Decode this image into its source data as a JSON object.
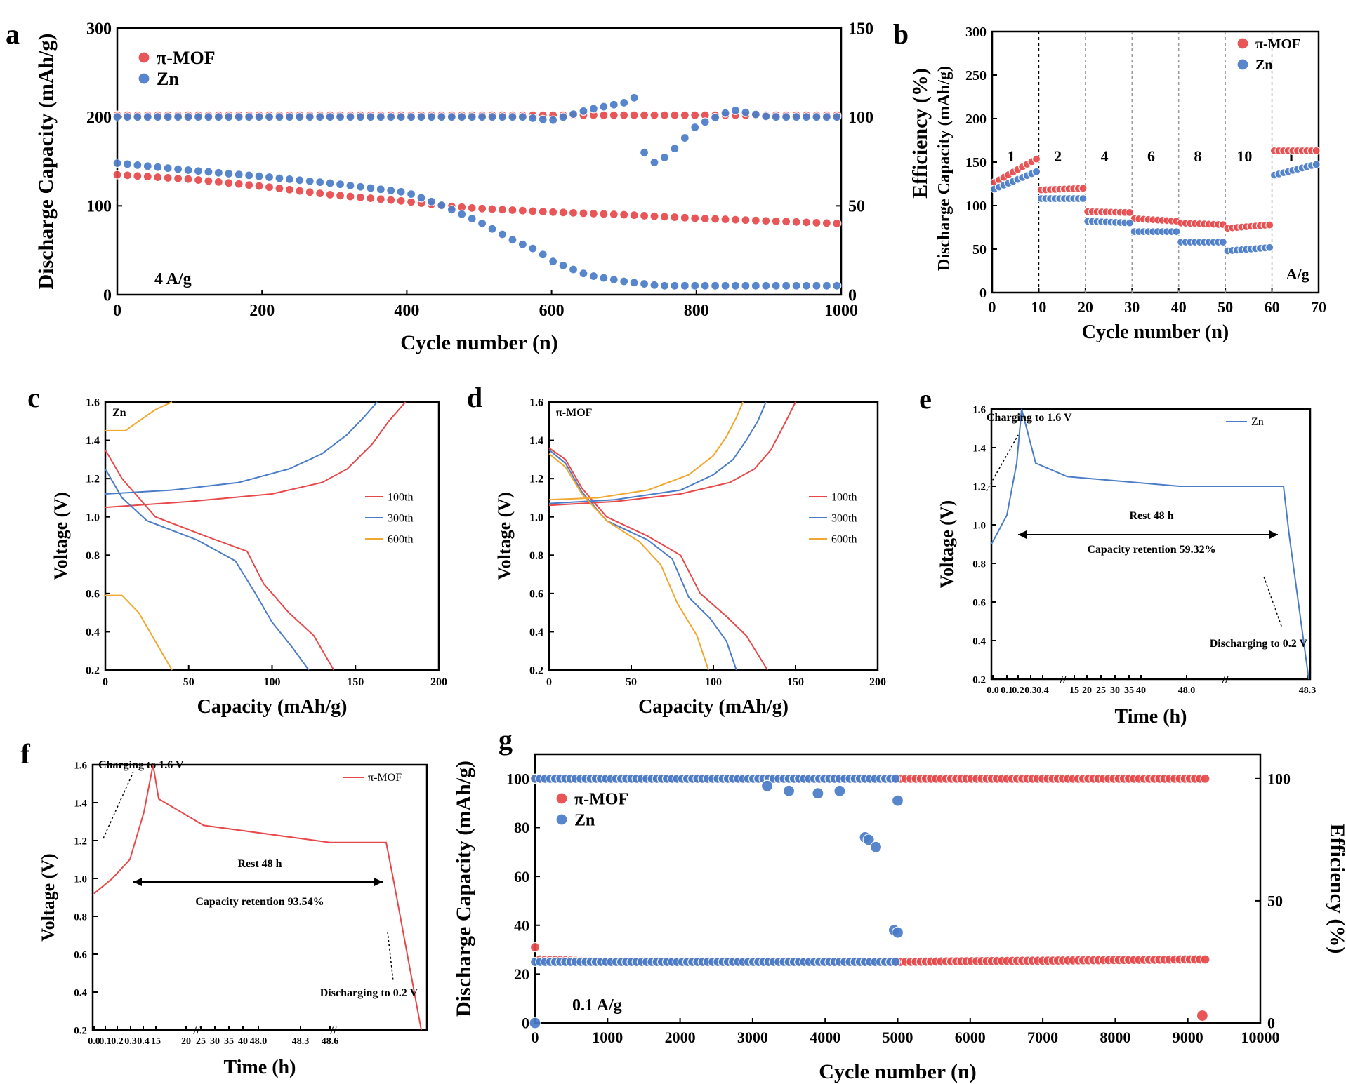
{
  "colors": {
    "mof": "#e8484a",
    "zn": "#4a7cc8",
    "orange": "#f0a830",
    "axis": "#000000"
  },
  "panels": {
    "a": {
      "letter": "a",
      "xlabel": "Cycle number (n)",
      "ylabel": "Discharge Capacity (mAh/g)",
      "xticks": [
        "0",
        "200",
        "400",
        "600",
        "800",
        "1000"
      ],
      "yticks": [
        "0",
        "100",
        "200",
        "300"
      ],
      "y2ticks": [
        "0",
        "50",
        "100",
        "150"
      ],
      "annotation": "4 A/g",
      "legend": [
        "π-MOF",
        "Zn"
      ]
    },
    "b": {
      "letter": "b",
      "xlabel": "Cycle number (n)",
      "ylabel_outer": "Efficiency (%)",
      "ylabel_inner": "Discharge Capacity (mAh/g)",
      "xticks": [
        "0",
        "10",
        "20",
        "30",
        "40",
        "50",
        "60",
        "70"
      ],
      "yticks": [
        "0",
        "50",
        "100",
        "150",
        "200",
        "250",
        "300"
      ],
      "segment_labels": [
        "1",
        "2",
        "4",
        "6",
        "8",
        "10",
        "1"
      ],
      "unit": "A/g",
      "legend": [
        "π-MOF",
        "Zn"
      ]
    },
    "c": {
      "letter": "c",
      "xlabel": "Capacity (mAh/g)",
      "ylabel": "Voltage (V)",
      "tag": "Zn",
      "xticks": [
        "0",
        "50",
        "100",
        "150",
        "200"
      ],
      "yticks": [
        "0.2",
        "0.4",
        "0.6",
        "0.8",
        "1.0",
        "1.2",
        "1.4",
        "1.6"
      ],
      "legend": [
        "100th",
        "300th",
        "600th"
      ]
    },
    "d": {
      "letter": "d",
      "xlabel": "Capacity (mAh/g)",
      "ylabel": "Voltage (V)",
      "tag": "π-MOF",
      "xticks": [
        "0",
        "50",
        "100",
        "150",
        "200"
      ],
      "yticks": [
        "0.2",
        "0.4",
        "0.6",
        "0.8",
        "1.0",
        "1.2",
        "1.4",
        "1.6"
      ],
      "legend": [
        "100th",
        "300th",
        "600th"
      ]
    },
    "e": {
      "letter": "e",
      "xlabel": "Time (h)",
      "ylabel": "Voltage (V)",
      "legend": "Zn",
      "charge_note": "Charging to 1.6 V",
      "rest_note": "Rest 48 h",
      "retention_note": "Capacity retention 59.32%",
      "discharge_note": "Discharging to 0.2 V",
      "xticks": [
        "0.0",
        "0.1",
        "0.2",
        "0.3",
        "0.4",
        "15",
        "20",
        "25",
        "30",
        "35",
        "40",
        "48.0",
        "48.3"
      ],
      "yticks": [
        "0.2",
        "0.4",
        "0.6",
        "0.8",
        "1.0",
        "1.2",
        "1.4",
        "1.6"
      ]
    },
    "f": {
      "letter": "f",
      "xlabel": "Time (h)",
      "ylabel": "Voltage (V)",
      "legend": "π-MOF",
      "charge_note": "Charging to 1.6 V",
      "rest_note": "Rest 48 h",
      "retention_note": "Capacity retention 93.54%",
      "discharge_note": "Discharging to 0.2 V",
      "xticks": [
        "0.0",
        "0.1",
        "0.2",
        "0.3",
        "0.4",
        "15",
        "20",
        "25",
        "30",
        "35",
        "40",
        "48.0",
        "48.3",
        "48.6"
      ],
      "yticks": [
        "0.2",
        "0.4",
        "0.6",
        "0.8",
        "1.0",
        "1.2",
        "1.4",
        "1.6"
      ]
    },
    "g": {
      "letter": "g",
      "xlabel": "Cycle number (n)",
      "ylabel": "Discharge Capacity (mAh/g)",
      "y2label": "Efficiency (%)",
      "xticks": [
        "0",
        "1000",
        "2000",
        "3000",
        "4000",
        "5000",
        "6000",
        "7000",
        "8000",
        "9000",
        "10000"
      ],
      "yticks": [
        "0",
        "20",
        "40",
        "60",
        "80",
        "100"
      ],
      "y2ticks": [
        "0",
        "50",
        "100"
      ],
      "annotation": "0.1 A/g",
      "legend": [
        "π-MOF",
        "Zn"
      ]
    }
  },
  "chart_data": [
    {
      "panel": "a",
      "type": "scatter",
      "xlim": [
        0,
        1000
      ],
      "ylim": [
        0,
        300
      ],
      "y2lim": [
        0,
        150
      ],
      "series": [
        {
          "name": "π-MOF",
          "role": "capacity",
          "x": [
            0,
            100,
            200,
            300,
            400,
            450,
            500,
            600,
            700,
            800,
            900,
            1000
          ],
          "y": [
            135,
            130,
            122,
            112,
            105,
            100,
            97,
            93,
            90,
            86,
            83,
            80
          ]
        },
        {
          "name": "Zn",
          "role": "capacity",
          "x": [
            0,
            100,
            200,
            300,
            400,
            450,
            500,
            550,
            580,
            600,
            650,
            700,
            750,
            800,
            1000
          ],
          "y": [
            148,
            140,
            133,
            125,
            115,
            100,
            82,
            60,
            50,
            38,
            22,
            15,
            10,
            10,
            10
          ]
        },
        {
          "name": "π-MOF",
          "role": "efficiency",
          "x": [
            0,
            1000
          ],
          "y": [
            101,
            101
          ]
        },
        {
          "name": "Zn",
          "role": "efficiency",
          "x": [
            0,
            560,
            600,
            650,
            700,
            720,
            730,
            760,
            800,
            850,
            900,
            1000
          ],
          "y": [
            100,
            100,
            98,
            104,
            108,
            112,
            72,
            78,
            95,
            104,
            100,
            100
          ]
        }
      ]
    },
    {
      "panel": "b",
      "type": "scatter",
      "xlim": [
        0,
        70
      ],
      "ylim": [
        0,
        300
      ],
      "series": [
        {
          "name": "π-MOF",
          "role": "capacity",
          "x": [
            0,
            10,
            10.5,
            20,
            20.5,
            30,
            30.5,
            40,
            40.5,
            50,
            50.5,
            60,
            60.5,
            70
          ],
          "y": [
            125,
            155,
            118,
            120,
            93,
            92,
            85,
            82,
            80,
            78,
            74,
            78,
            163,
            163
          ]
        },
        {
          "name": "Zn",
          "role": "capacity",
          "x": [
            0,
            10,
            10.5,
            20,
            20.5,
            30,
            30.5,
            40,
            40.5,
            50,
            50.5,
            60,
            60.5,
            70
          ],
          "y": [
            118,
            140,
            108,
            108,
            82,
            80,
            70,
            70,
            58,
            58,
            48,
            52,
            135,
            148
          ]
        }
      ]
    },
    {
      "panel": "c",
      "type": "line",
      "xlim": [
        0,
        200
      ],
      "ylim": [
        0.2,
        1.6
      ],
      "series": [
        {
          "name": "100th",
          "role": "discharge",
          "x": [
            0,
            10,
            30,
            60,
            85,
            95,
            110,
            125,
            137
          ],
          "y": [
            1.35,
            1.2,
            1.0,
            0.9,
            0.82,
            0.65,
            0.5,
            0.38,
            0.2
          ]
        },
        {
          "name": "100th",
          "role": "charge",
          "x": [
            0,
            50,
            100,
            130,
            145,
            160,
            170,
            180
          ],
          "y": [
            1.05,
            1.08,
            1.12,
            1.18,
            1.25,
            1.38,
            1.5,
            1.6
          ]
        },
        {
          "name": "300th",
          "role": "discharge",
          "x": [
            0,
            10,
            25,
            55,
            78,
            90,
            100,
            112,
            122
          ],
          "y": [
            1.25,
            1.1,
            0.98,
            0.88,
            0.77,
            0.6,
            0.45,
            0.32,
            0.2
          ]
        },
        {
          "name": "300th",
          "role": "charge",
          "x": [
            0,
            40,
            80,
            110,
            130,
            145,
            155,
            163
          ],
          "y": [
            1.12,
            1.14,
            1.18,
            1.25,
            1.33,
            1.43,
            1.52,
            1.6
          ]
        },
        {
          "name": "600th",
          "role": "discharge",
          "x": [
            0,
            10,
            20,
            30,
            40
          ],
          "y": [
            0.59,
            0.59,
            0.5,
            0.35,
            0.2
          ]
        },
        {
          "name": "600th",
          "role": "charge",
          "x": [
            0,
            12,
            20,
            30,
            40
          ],
          "y": [
            1.45,
            1.45,
            1.5,
            1.56,
            1.6
          ]
        }
      ]
    },
    {
      "panel": "d",
      "type": "line",
      "xlim": [
        0,
        200
      ],
      "ylim": [
        0.2,
        1.6
      ],
      "series": [
        {
          "name": "100th",
          "role": "discharge",
          "x": [
            0,
            10,
            20,
            35,
            60,
            80,
            92,
            108,
            120,
            133
          ],
          "y": [
            1.36,
            1.3,
            1.15,
            1.0,
            0.9,
            0.8,
            0.6,
            0.48,
            0.38,
            0.2
          ]
        },
        {
          "name": "100th",
          "role": "charge",
          "x": [
            0,
            40,
            80,
            110,
            125,
            135,
            143,
            150
          ],
          "y": [
            1.06,
            1.08,
            1.12,
            1.18,
            1.25,
            1.35,
            1.48,
            1.6
          ]
        },
        {
          "name": "300th",
          "role": "discharge",
          "x": [
            0,
            10,
            20,
            35,
            60,
            75,
            85,
            98,
            108,
            114
          ],
          "y": [
            1.35,
            1.28,
            1.13,
            0.98,
            0.88,
            0.78,
            0.58,
            0.47,
            0.35,
            0.2
          ]
        },
        {
          "name": "300th",
          "role": "charge",
          "x": [
            0,
            40,
            80,
            100,
            112,
            120,
            127,
            132
          ],
          "y": [
            1.07,
            1.09,
            1.14,
            1.22,
            1.3,
            1.4,
            1.5,
            1.6
          ]
        },
        {
          "name": "600th",
          "role": "discharge",
          "x": [
            0,
            10,
            20,
            35,
            55,
            68,
            78,
            90,
            97
          ],
          "y": [
            1.33,
            1.26,
            1.12,
            0.98,
            0.87,
            0.75,
            0.55,
            0.38,
            0.2
          ]
        },
        {
          "name": "600th",
          "role": "charge",
          "x": [
            0,
            30,
            60,
            85,
            100,
            108,
            114,
            118
          ],
          "y": [
            1.09,
            1.1,
            1.14,
            1.22,
            1.32,
            1.42,
            1.52,
            1.6
          ]
        }
      ]
    },
    {
      "panel": "e",
      "type": "line",
      "ylim": [
        0.2,
        1.6
      ],
      "series": [
        {
          "name": "Zn",
          "x": [
            "0.0",
            "0.1",
            "0.2",
            "0.21",
            "0.3",
            "15",
            "40",
            "48.0",
            "48.1",
            "48.3"
          ],
          "y": [
            0.9,
            1.05,
            1.32,
            1.6,
            1.32,
            1.25,
            1.2,
            1.2,
            0.95,
            0.2
          ]
        }
      ]
    },
    {
      "panel": "f",
      "type": "line",
      "ylim": [
        0.2,
        1.6
      ],
      "series": [
        {
          "name": "π-MOF",
          "x": [
            "0.0",
            "0.1",
            "0.2",
            "0.3",
            "0.33",
            "0.4",
            "15",
            "40",
            "48.0",
            "48.3",
            "48.6"
          ],
          "y": [
            0.92,
            1.0,
            1.1,
            1.35,
            1.6,
            1.42,
            1.28,
            1.19,
            1.19,
            1.0,
            0.2
          ]
        }
      ]
    },
    {
      "panel": "g",
      "type": "scatter",
      "xlim": [
        0,
        10000
      ],
      "ylim": [
        0,
        110
      ],
      "y2lim": [
        0,
        110
      ],
      "series": [
        {
          "name": "π-MOF",
          "role": "capacity",
          "x": [
            0,
            50,
            1000,
            5000,
            9000,
            9250
          ],
          "y": [
            31,
            26,
            25,
            25,
            26,
            26
          ]
        },
        {
          "name": "Zn",
          "role": "capacity",
          "x": [
            0,
            1000,
            5000
          ],
          "y": [
            25,
            25,
            25
          ]
        },
        {
          "name": "π-MOF",
          "role": "efficiency",
          "x": [
            0,
            9250
          ],
          "y": [
            100,
            100
          ]
        },
        {
          "name": "Zn",
          "role": "efficiency",
          "x": [
            0,
            5000
          ],
          "y": [
            100,
            100
          ]
        },
        {
          "name": "Zn",
          "role": "efficiency-outliers",
          "x": [
            0,
            3200,
            3500,
            3900,
            4200,
            4550,
            4600,
            4700,
            5000,
            4950,
            5000
          ],
          "y": [
            0,
            97,
            95,
            94,
            95,
            76,
            75,
            72,
            91,
            38,
            37
          ]
        },
        {
          "name": "π-MOF",
          "role": "efficiency-outliers",
          "x": [
            9200
          ],
          "y": [
            3
          ]
        }
      ]
    }
  ]
}
